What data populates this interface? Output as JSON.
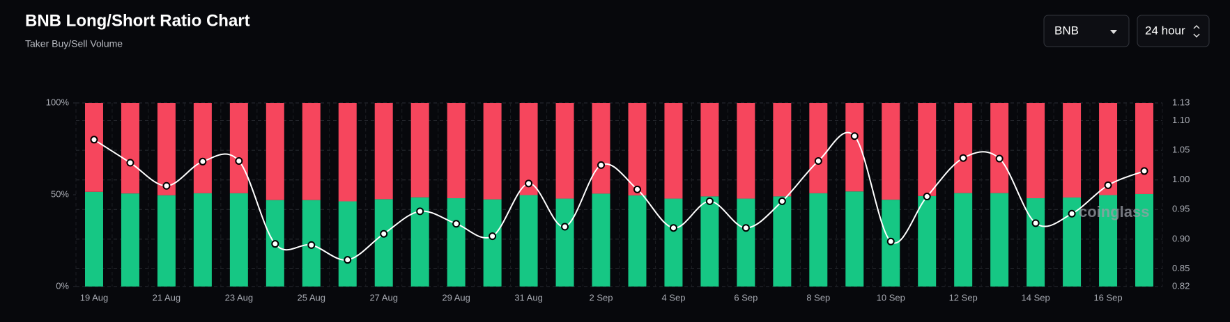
{
  "header": {
    "title": "BNB Long/Short Ratio Chart",
    "subtitle": "Taker Buy/Sell Volume"
  },
  "controls": {
    "symbol": "BNB",
    "interval": "24 hour"
  },
  "watermark": "coinglass",
  "chart_data": {
    "type": "bar",
    "stacked": true,
    "categories": [
      "19 Aug",
      null,
      "21 Aug",
      null,
      "23 Aug",
      null,
      "25 Aug",
      null,
      "27 Aug",
      null,
      "29 Aug",
      null,
      "31 Aug",
      null,
      "2 Sep",
      null,
      "4 Sep",
      null,
      "6 Sep",
      null,
      "8 Sep",
      null,
      "10 Sep",
      null,
      "12 Sep",
      null,
      "14 Sep",
      null,
      "16 Sep",
      null
    ],
    "series": [
      {
        "color": "#16c784",
        "values": [
          51.6,
          50.7,
          49.7,
          50.8,
          50.8,
          47.1,
          47.1,
          46.4,
          47.6,
          48.6,
          48.1,
          47.5,
          49.8,
          47.9,
          50.6,
          49.6,
          47.9,
          49.1,
          47.9,
          49.1,
          50.8,
          51.8,
          47.3,
          49.3,
          50.9,
          50.9,
          48.1,
          48.5,
          49.8,
          50.4
        ]
      },
      {
        "color": "#f6465d",
        "values": [
          48.4,
          49.3,
          50.3,
          49.2,
          49.2,
          52.9,
          52.9,
          53.6,
          52.4,
          51.4,
          51.9,
          52.5,
          50.2,
          52.1,
          49.4,
          50.4,
          52.1,
          50.9,
          52.1,
          50.9,
          49.2,
          48.2,
          52.7,
          50.7,
          49.1,
          49.1,
          51.9,
          51.5,
          50.2,
          49.6
        ]
      },
      {
        "type": "line",
        "axis": "y2",
        "color": "#ffffff",
        "values": [
          1.068,
          1.029,
          0.99,
          1.031,
          1.032,
          0.892,
          0.89,
          0.865,
          0.909,
          0.947,
          0.926,
          0.905,
          0.994,
          0.921,
          1.025,
          0.984,
          0.919,
          0.964,
          0.919,
          0.964,
          1.032,
          1.074,
          0.896,
          0.972,
          1.037,
          1.036,
          0.927,
          0.943,
          0.991,
          1.015
        ]
      }
    ],
    "ylim": [
      0,
      100
    ],
    "yticks": [
      {
        "value": 0,
        "label": "0%"
      },
      {
        "value": 50,
        "label": "50%"
      },
      {
        "value": 100,
        "label": "100%"
      }
    ],
    "y2lim": [
      0.82,
      1.13
    ],
    "y2ticks": [
      0.82,
      0.85,
      {
        "value": 0.9,
        "label": "0.90"
      },
      0.95,
      {
        "value": 1.0,
        "label": "1.00"
      },
      1.05,
      {
        "value": 1.1,
        "label": "1.10"
      },
      1.13
    ],
    "grid": true
  }
}
